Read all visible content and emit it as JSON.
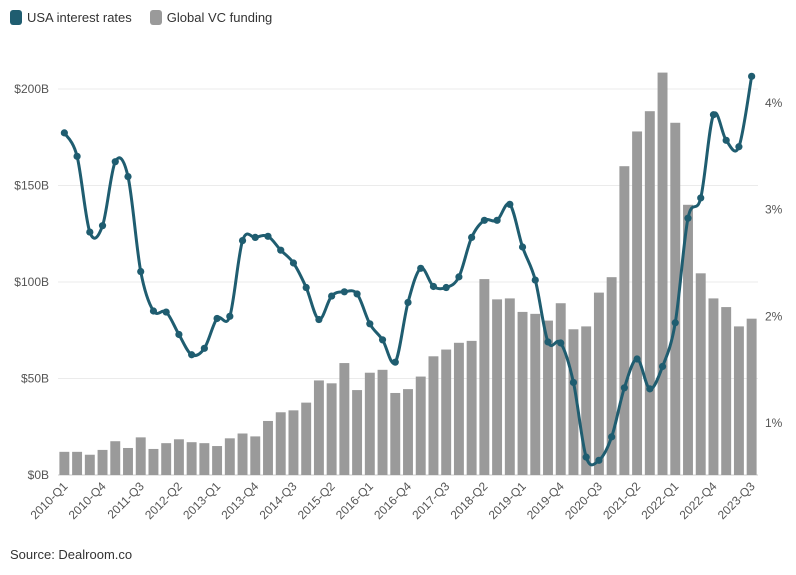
{
  "legend": [
    {
      "label": "USA interest rates",
      "color": "#1f5d70"
    },
    {
      "label": "Global VC funding",
      "color": "#9a9a9a"
    }
  ],
  "source": "Source: Dealroom.co",
  "chart_data": {
    "type": "bar+line",
    "quarters": [
      "2010-Q1",
      "2010-Q2",
      "2010-Q3",
      "2010-Q4",
      "2011-Q1",
      "2011-Q2",
      "2011-Q3",
      "2011-Q4",
      "2012-Q1",
      "2012-Q2",
      "2012-Q3",
      "2012-Q4",
      "2013-Q1",
      "2013-Q2",
      "2013-Q3",
      "2013-Q4",
      "2014-Q1",
      "2014-Q2",
      "2014-Q3",
      "2014-Q4",
      "2015-Q1",
      "2015-Q2",
      "2015-Q3",
      "2015-Q4",
      "2016-Q1",
      "2016-Q2",
      "2016-Q3",
      "2016-Q4",
      "2017-Q1",
      "2017-Q2",
      "2017-Q3",
      "2017-Q4",
      "2018-Q1",
      "2018-Q2",
      "2018-Q3",
      "2018-Q4",
      "2019-Q1",
      "2019-Q2",
      "2019-Q3",
      "2019-Q4",
      "2020-Q1",
      "2020-Q2",
      "2020-Q3",
      "2020-Q4",
      "2021-Q1",
      "2021-Q2",
      "2021-Q3",
      "2021-Q4",
      "2022-Q1",
      "2022-Q2",
      "2022-Q3",
      "2022-Q4",
      "2023-Q1",
      "2023-Q2",
      "2023-Q3"
    ],
    "x_tick_labels": [
      "2010-Q1",
      "2010-Q4",
      "2011-Q3",
      "2012-Q2",
      "2013-Q1",
      "2013-Q4",
      "2014-Q3",
      "2015-Q2",
      "2016-Q1",
      "2016-Q4",
      "2017-Q3",
      "2018-Q2",
      "2019-Q1",
      "2019-Q4",
      "2020-Q3",
      "2021-Q2",
      "2022-Q1",
      "2022-Q4",
      "2023-Q3"
    ],
    "series": [
      {
        "name": "Global VC funding",
        "type": "bar",
        "axis": "left",
        "unit": "$B",
        "values": [
          12,
          12,
          10.5,
          13,
          17.5,
          14,
          19.5,
          13.5,
          16.5,
          18.5,
          17,
          16.5,
          15,
          19,
          21.5,
          20,
          28,
          32.5,
          33.5,
          37.5,
          49,
          47.5,
          58,
          44,
          53,
          54.5,
          42.5,
          44.5,
          51,
          61.5,
          65,
          68.5,
          69.5,
          101.5,
          91,
          91.5,
          84.5,
          83.5,
          80,
          89,
          75.5,
          77,
          94.5,
          102.5,
          160,
          178,
          188.5,
          208.5,
          182.5,
          140,
          104.5,
          91.5,
          87,
          77,
          81
        ]
      },
      {
        "name": "USA interest rates",
        "type": "line",
        "axis": "right",
        "unit": "%",
        "values": [
          3.72,
          3.5,
          2.79,
          2.85,
          3.45,
          3.31,
          2.42,
          2.05,
          2.04,
          1.83,
          1.64,
          1.7,
          1.98,
          2.0,
          2.71,
          2.74,
          2.75,
          2.62,
          2.5,
          2.27,
          1.97,
          2.19,
          2.23,
          2.21,
          1.93,
          1.78,
          1.57,
          2.13,
          2.45,
          2.28,
          2.27,
          2.37,
          2.74,
          2.9,
          2.9,
          3.05,
          2.65,
          2.34,
          1.76,
          1.75,
          1.38,
          0.68,
          0.65,
          0.87,
          1.33,
          1.6,
          1.32,
          1.53,
          1.94,
          2.92,
          3.11,
          3.89,
          3.65,
          3.59,
          4.25
        ]
      }
    ],
    "y_left": {
      "min": 0,
      "max": 200,
      "ticks": [
        0,
        50,
        100,
        150,
        200
      ],
      "tick_labels": [
        "$0B",
        "$50B",
        "$100B",
        "$150B",
        "$200B"
      ]
    },
    "y_right": {
      "ticks": [
        1,
        2,
        3,
        4
      ],
      "tick_labels": [
        "1%",
        "2%",
        "3%",
        "4%"
      ]
    },
    "grid": true,
    "legend_position": "top-left"
  }
}
